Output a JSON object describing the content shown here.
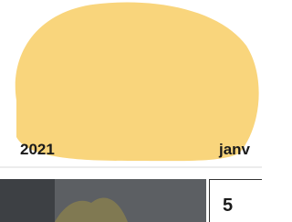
{
  "header": {
    "year": "2021",
    "month": "janv"
  },
  "calendar": {
    "day": "5"
  }
}
